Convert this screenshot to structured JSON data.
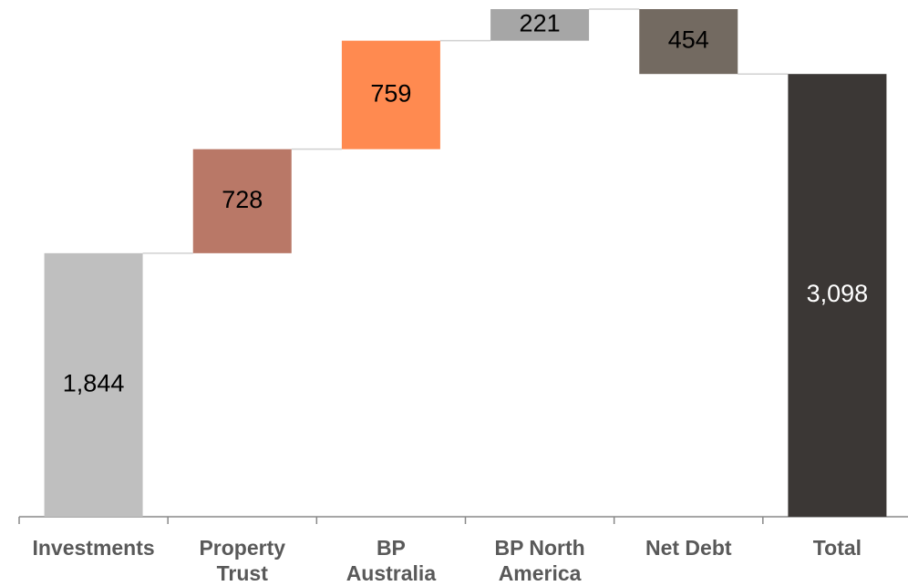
{
  "chart_data": {
    "type": "waterfall",
    "categories": [
      "Investments",
      "Property Trust",
      "BP Australia",
      "BP North America",
      "Net Debt",
      "Total"
    ],
    "values": [
      1844,
      728,
      759,
      221,
      -454,
      3098
    ],
    "value_labels": [
      "1,844",
      "728",
      "759",
      "221",
      "454",
      "3,098"
    ],
    "colors": [
      "#bfbfbf",
      "#b97867",
      "#ff8a50",
      "#a6a6a6",
      "#736a61",
      "#3b3735"
    ],
    "label_colors": [
      "#000000",
      "#000000",
      "#000000",
      "#000000",
      "#000000",
      "#ffffff"
    ]
  }
}
